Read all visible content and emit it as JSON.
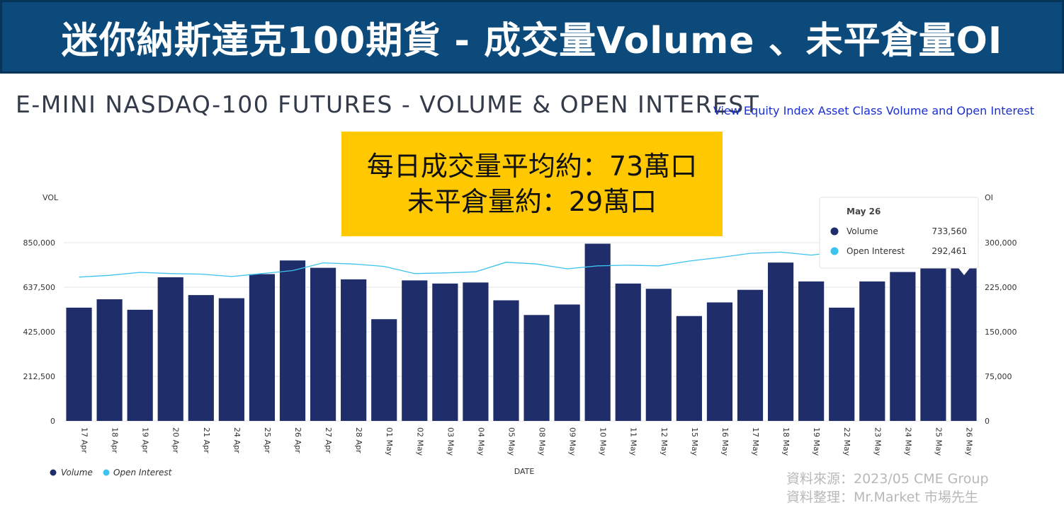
{
  "banner": {
    "title": "迷你納斯達克100期貨 - 成交量Volume 、未平倉量OI"
  },
  "header": {
    "title": "E-MINI NASDAQ-100 FUTURES - VOLUME & OPEN INTEREST",
    "link": "View Equity Index Asset Class Volume and Open Interest"
  },
  "callout": {
    "line1": "每日成交量平均約：73萬口",
    "line2": "未平倉量約：29萬口"
  },
  "source": {
    "line1": "資料來源：2023/05 CME Group",
    "line2": "資料整理：Mr.Market 市場先生"
  },
  "colors": {
    "volume": "#1f2d6b",
    "open_interest": "#3cc3ee",
    "banner": "#0b4a7a",
    "callout": "#ffc800"
  },
  "chart_data": {
    "type": "bar",
    "xlabel": "DATE",
    "ylabel_left": "VOL",
    "ylabel_right": "OI",
    "categories": [
      "17 Apr",
      "18 Apr",
      "19 Apr",
      "20 Apr",
      "21 Apr",
      "24 Apr",
      "25 Apr",
      "26 Apr",
      "27 Apr",
      "28 Apr",
      "01 May",
      "02 May",
      "03 May",
      "04 May",
      "05 May",
      "08 May",
      "09 May",
      "10 May",
      "11 May",
      "12 May",
      "15 May",
      "16 May",
      "17 May",
      "18 May",
      "19 May",
      "22 May",
      "23 May",
      "24 May",
      "25 May",
      "26 May"
    ],
    "left_ticks": [
      "0",
      "212,500",
      "425,000",
      "637,500",
      "850,000"
    ],
    "left_tick_values": [
      0,
      212500,
      425000,
      637500,
      850000
    ],
    "right_ticks": [
      "0",
      "75,000",
      "150,000",
      "225,000",
      "300,000"
    ],
    "right_tick_values": [
      0,
      75000,
      150000,
      225000,
      300000
    ],
    "ylim_left": [
      0,
      850000
    ],
    "ylim_right": [
      0,
      300000
    ],
    "series": [
      {
        "name": "Volume",
        "type": "bar",
        "axis": "left",
        "values": [
          540000,
          580000,
          530000,
          685000,
          600000,
          585000,
          700000,
          765000,
          730000,
          675000,
          485000,
          670000,
          655000,
          660000,
          575000,
          505000,
          555000,
          845000,
          655000,
          630000,
          500000,
          565000,
          625000,
          755000,
          665000,
          540000,
          665000,
          710000,
          745000,
          733560
        ]
      },
      {
        "name": "Open Interest",
        "type": "line",
        "axis": "right",
        "values": [
          242000,
          245000,
          250000,
          248000,
          247000,
          243000,
          248000,
          253000,
          266000,
          264000,
          260000,
          248000,
          249000,
          251000,
          267000,
          264000,
          256000,
          261000,
          262000,
          261000,
          269000,
          275000,
          282000,
          284000,
          279000,
          285000,
          289000,
          291000,
          292000,
          292461
        ]
      }
    ],
    "legend": [
      "Volume",
      "Open Interest"
    ],
    "legend_position": "bottom-left",
    "grid": true,
    "tooltip": {
      "title": "May 26",
      "rows": [
        {
          "label": "Volume",
          "value": "733,560"
        },
        {
          "label": "Open Interest",
          "value": "292,461"
        }
      ]
    }
  }
}
